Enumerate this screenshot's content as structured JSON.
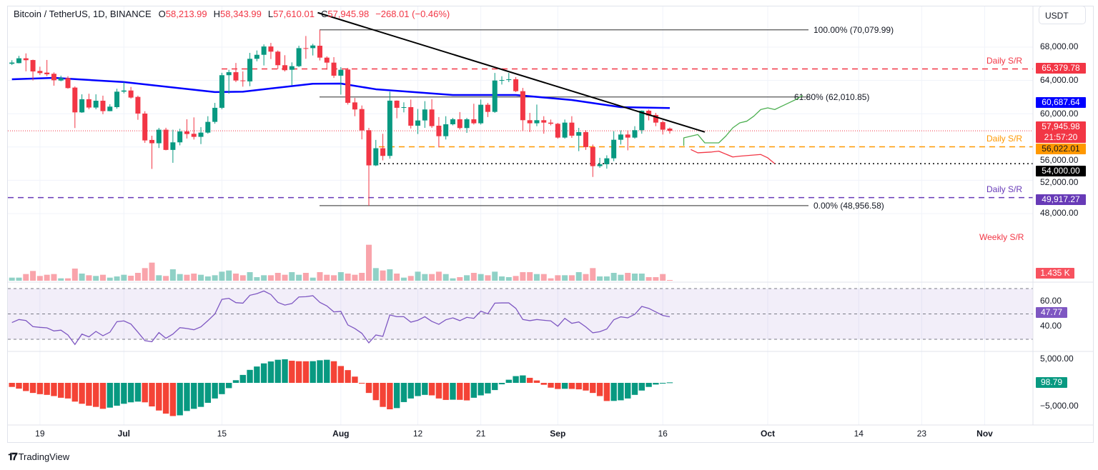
{
  "header": {
    "symbol": "Bitcoin / TetherUS, 1D, BINANCE",
    "o_label": "O",
    "o_value": "58,213.99",
    "h_label": "H",
    "h_value": "58,343.99",
    "l_label": "L",
    "l_value": "57,610.01",
    "c_label": "C",
    "c_value": "57,945.98",
    "change": "−268.01 (−0.46%)"
  },
  "currency": "USDT",
  "branding": {
    "logo_text": "TradingView",
    "logo_mark": "17"
  },
  "colors": {
    "up": "#089981",
    "down": "#f23645",
    "ma": "#0000ff",
    "rsi": "#7e57c2",
    "daily_sr_red": "#f23645",
    "daily_sr_orange": "#ff9800",
    "daily_sr_purple": "#673ab7",
    "support_black": "#000000",
    "forecast_bull": "#4caf50",
    "forecast_bear": "#f23645"
  },
  "price_axis": {
    "ticks": [
      "68,000.00",
      "64,000.00",
      "60,000.00",
      "56,000.00",
      "52,000.00",
      "48,000.00"
    ],
    "tick_values": [
      68000,
      64000,
      60000,
      56000,
      52000,
      48000
    ]
  },
  "price_tags": [
    {
      "text": "65,379.78",
      "value": 65379.78,
      "color": "#f23645"
    },
    {
      "text": "60,687.64",
      "value": 60687.64,
      "color": "#0000ff"
    },
    {
      "text": "57,945.98",
      "sub": "21:57:20",
      "value": 57945.98,
      "color": "#f23645"
    },
    {
      "text": "56,022.01",
      "value": 56022.01,
      "color": "#ff9800",
      "text_color": "#131722"
    },
    {
      "text": "54,000.00",
      "value": 54000,
      "color": "#000000"
    },
    {
      "text": "49,917.27",
      "value": 49917.27,
      "color": "#673ab7"
    }
  ],
  "sr_labels": [
    {
      "text": "Daily S/R",
      "value": 65379.78,
      "color": "#f23645"
    },
    {
      "text": "Daily S/R",
      "value": 56022.01,
      "color": "#ff9800"
    },
    {
      "text": "Daily S/R",
      "value": 49917.27,
      "color": "#673ab7"
    },
    {
      "text": "Weekly S/R",
      "color": "#f23645"
    }
  ],
  "fib_levels": [
    {
      "label": "100.00% (70,079.99)",
      "value": 70079.99
    },
    {
      "label": "61.80% (62,010.85)",
      "value": 62010.85
    },
    {
      "label": "0.00% (48,956.58)",
      "value": 48956.58
    }
  ],
  "volume_tag": {
    "text": "1.435 K",
    "color": "#f7525f"
  },
  "rsi_axis": {
    "ticks": [
      "60.00",
      "40.00"
    ],
    "tick_values": [
      60,
      40
    ],
    "band": [
      30,
      70
    ],
    "tag": "47.77",
    "tag_color": "#7e57c2"
  },
  "ao_axis": {
    "ticks": [
      "5,000.00",
      "−5,000.00"
    ],
    "tick_values": [
      5000,
      -5000
    ],
    "tag": "98.79",
    "tag_color": "#089981"
  },
  "time_axis": [
    {
      "label": "19",
      "x": "Jun 19",
      "month": false
    },
    {
      "label": "Jul",
      "x": "Jul 1",
      "month": true
    },
    {
      "label": "15",
      "x": "Jul 15",
      "month": false
    },
    {
      "label": "Aug",
      "x": "Aug 1",
      "month": true
    },
    {
      "label": "12",
      "x": "Aug 12",
      "month": false
    },
    {
      "label": "21",
      "x": "Aug 21",
      "month": false
    },
    {
      "label": "Sep",
      "x": "Sep 1",
      "month": true
    },
    {
      "label": "16",
      "x": "Sep 16",
      "month": false
    },
    {
      "label": "Oct",
      "x": "Oct 1",
      "month": true
    },
    {
      "label": "14",
      "x": "Oct 14",
      "month": false
    },
    {
      "label": "23",
      "x": "Oct 23",
      "month": false
    },
    {
      "label": "Nov",
      "x": "Nov 1",
      "month": true
    }
  ],
  "chart_data": {
    "type": "candlestick",
    "candles": [
      [
        "Jun 15",
        66000,
        66430,
        65850,
        66150
      ],
      [
        "Jun 16",
        66080,
        66950,
        66050,
        66660
      ],
      [
        "Jun 17",
        66660,
        67250,
        65100,
        66430
      ],
      [
        "Jun 18",
        66450,
        66500,
        64000,
        65080
      ],
      [
        "Jun 19",
        65140,
        65650,
        64650,
        64880
      ],
      [
        "Jun 20",
        64940,
        66460,
        64510,
        64740
      ],
      [
        "Jun 21",
        64800,
        64970,
        63370,
        64020
      ],
      [
        "Jun 22",
        63990,
        64570,
        63900,
        64280
      ],
      [
        "Jun 23",
        64280,
        64510,
        63000,
        63080
      ],
      [
        "Jun 24",
        63140,
        63280,
        58280,
        60160
      ],
      [
        "Jun 25",
        60160,
        62330,
        60100,
        61740
      ],
      [
        "Jun 26",
        61740,
        62400,
        60530,
        60740
      ],
      [
        "Jun 27",
        60740,
        62330,
        60530,
        61560
      ],
      [
        "Jun 28",
        61560,
        62170,
        59940,
        60310
      ],
      [
        "Jun 29",
        60310,
        61140,
        60300,
        60850
      ],
      [
        "Jun 30",
        60790,
        63000,
        60600,
        62650
      ],
      [
        "Jul 1",
        62650,
        63790,
        62450,
        62790
      ],
      [
        "Jul 2",
        62790,
        63220,
        61820,
        61940
      ],
      [
        "Jul 3",
        62020,
        62170,
        59270,
        60020
      ],
      [
        "Jul 4",
        60020,
        60300,
        56500,
        56790
      ],
      [
        "Jul 5",
        56850,
        57360,
        53360,
        56450
      ],
      [
        "Jul 6",
        56450,
        58300,
        55880,
        58080
      ],
      [
        "Jul 7",
        58080,
        58310,
        55600,
        55650
      ],
      [
        "Jul 8",
        55650,
        58080,
        54100,
        56560
      ],
      [
        "Jul 9",
        56560,
        58190,
        56200,
        57870
      ],
      [
        "Jul 10",
        57870,
        59330,
        57020,
        57560
      ],
      [
        "Jul 11",
        57590,
        59560,
        56900,
        57220
      ],
      [
        "Jul 12",
        57220,
        58390,
        56350,
        57730
      ],
      [
        "Jul 13",
        57730,
        59700,
        57600,
        59020
      ],
      [
        "Jul 14",
        59020,
        61300,
        58800,
        60710
      ],
      [
        "Jul 15",
        60710,
        64920,
        60540,
        64630
      ],
      [
        "Jul 16",
        64630,
        65280,
        62400,
        64990
      ],
      [
        "Jul 17",
        64990,
        66100,
        63800,
        63990
      ],
      [
        "Jul 18",
        64000,
        65080,
        63250,
        63930
      ],
      [
        "Jul 19",
        63880,
        67310,
        63310,
        66600
      ],
      [
        "Jul 20",
        66600,
        67600,
        66300,
        67080
      ],
      [
        "Jul 21",
        67080,
        68330,
        65800,
        68080
      ],
      [
        "Jul 22",
        68080,
        68510,
        66570,
        67460
      ],
      [
        "Jul 23",
        67460,
        67600,
        65370,
        65830
      ],
      [
        "Jul 24",
        65830,
        67030,
        65080,
        65230
      ],
      [
        "Jul 25",
        65280,
        66170,
        63420,
        65710
      ],
      [
        "Jul 26",
        65710,
        68170,
        65600,
        67880
      ],
      [
        "Jul 27",
        67880,
        69340,
        66600,
        67820
      ],
      [
        "Jul 28",
        67880,
        68400,
        67000,
        68200
      ],
      [
        "Jul 29",
        68170,
        70080,
        66400,
        66740
      ],
      [
        "Jul 30",
        66740,
        66900,
        65300,
        66140
      ],
      [
        "Jul 31",
        66140,
        66800,
        64300,
        64570
      ],
      [
        "Aug 1",
        64570,
        65600,
        62300,
        65280
      ],
      [
        "Aug 2",
        65310,
        65500,
        61100,
        61310
      ],
      [
        "Aug 3",
        61360,
        61900,
        59700,
        60510
      ],
      [
        "Aug 4",
        60560,
        60990,
        56920,
        57990
      ],
      [
        "Aug 5",
        58020,
        58300,
        48960,
        53790
      ],
      [
        "Aug 6",
        53790,
        56850,
        53700,
        55850
      ],
      [
        "Aug 7",
        55850,
        57590,
        54400,
        54930
      ],
      [
        "Aug 8",
        54930,
        62650,
        54600,
        61570
      ],
      [
        "Aug 9",
        61570,
        61600,
        59450,
        60710
      ],
      [
        "Aug 10",
        60710,
        61370,
        60160,
        60790
      ],
      [
        "Aug 11",
        60790,
        61700,
        58220,
        58560
      ],
      [
        "Aug 12",
        58560,
        60570,
        57560,
        59190
      ],
      [
        "Aug 13",
        59190,
        61510,
        58300,
        60510
      ],
      [
        "Aug 14",
        60510,
        61740,
        58300,
        58510
      ],
      [
        "Aug 15",
        58560,
        59600,
        55960,
        57300
      ],
      [
        "Aug 16",
        57300,
        59700,
        56900,
        58730
      ],
      [
        "Aug 17",
        58730,
        59500,
        58600,
        59330
      ],
      [
        "Aug 18",
        59330,
        60200,
        58100,
        58280
      ],
      [
        "Aug 19",
        58280,
        59500,
        57700,
        59330
      ],
      [
        "Aug 20",
        59330,
        61200,
        58700,
        58850
      ],
      [
        "Aug 21",
        58850,
        61700,
        58700,
        61080
      ],
      [
        "Aug 22",
        61080,
        61300,
        59600,
        60220
      ],
      [
        "Aug 23",
        60220,
        64900,
        60100,
        63990
      ],
      [
        "Aug 24",
        63990,
        64500,
        63500,
        64050
      ],
      [
        "Aug 25",
        64050,
        64900,
        63800,
        64140
      ],
      [
        "Aug 26",
        64140,
        64400,
        62600,
        62710
      ],
      [
        "Aug 27",
        62710,
        63100,
        57900,
        59220
      ],
      [
        "Aug 28",
        59220,
        60100,
        57800,
        58850
      ],
      [
        "Aug 29",
        58850,
        61100,
        58500,
        59220
      ],
      [
        "Aug 30",
        59220,
        59700,
        57600,
        58930
      ],
      [
        "Aug 31",
        58930,
        59300,
        58600,
        58790
      ],
      [
        "Sep 1",
        58790,
        58900,
        57000,
        57130
      ],
      [
        "Sep 2",
        57130,
        59300,
        57000,
        58930
      ],
      [
        "Sep 3",
        58930,
        59700,
        57100,
        57360
      ],
      [
        "Sep 4",
        57360,
        58300,
        55500,
        57790
      ],
      [
        "Sep 5",
        57790,
        58000,
        55650,
        55990
      ],
      [
        "Sep 6",
        55990,
        56300,
        52400,
        53700
      ],
      [
        "Sep 7",
        53700,
        54700,
        53500,
        53930
      ],
      [
        "Sep 8",
        53930,
        55000,
        53400,
        54640
      ],
      [
        "Sep 9",
        54640,
        57900,
        54300,
        56870
      ],
      [
        "Sep 10",
        56870,
        58000,
        56300,
        57500
      ],
      [
        "Sep 11",
        57500,
        58000,
        55600,
        57130
      ],
      [
        "Sep 12",
        57130,
        58500,
        57000,
        58020
      ],
      [
        "Sep 13",
        58020,
        60400,
        57600,
        60360
      ],
      [
        "Sep 14",
        60360,
        60500,
        59200,
        59790
      ],
      [
        "Sep 15",
        59850,
        60100,
        58500,
        58930
      ],
      [
        "Sep 16",
        58990,
        59200,
        57500,
        58080
      ],
      [
        "Sep 17",
        58213.99,
        58343.99,
        57610.01,
        57945.98
      ]
    ],
    "volume_k": [
      11.7,
      11.7,
      25.2,
      36.9,
      18,
      22.5,
      25.2,
      9,
      9,
      45.9,
      27,
      20.7,
      18,
      22.5,
      11.7,
      16.2,
      22.5,
      18.9,
      29.7,
      47.7,
      68.4,
      20.7,
      18,
      43.2,
      25.2,
      22.5,
      27,
      22.5,
      16.2,
      20.7,
      34.2,
      38.7,
      27,
      20.7,
      32.4,
      13.5,
      20.7,
      20.7,
      29.7,
      22.5,
      32.4,
      22.5,
      29.7,
      11.7,
      32.4,
      22.5,
      20.7,
      32.4,
      27,
      22.5,
      29.7,
      135.9,
      47.7,
      38.7,
      43.2,
      27,
      11.7,
      18,
      34.2,
      25.2,
      25.2,
      34.2,
      25.2,
      9,
      13.5,
      20.7,
      29.7,
      25.2,
      20.7,
      34.2,
      16.2,
      13.5,
      18,
      32.4,
      32.4,
      25.2,
      25.2,
      9,
      20.7,
      20.7,
      20.7,
      32.4,
      25.2,
      47.7,
      16.2,
      16.2,
      29.7,
      22.5,
      29.7,
      27,
      27,
      13.5,
      13.5,
      25.2,
      1.435
    ],
    "ma100": [
      [
        "Jun 15",
        64140
      ],
      [
        "Jun 21",
        64310
      ],
      [
        "Jul 1",
        63800
      ],
      [
        "Jul 14",
        62600
      ],
      [
        "Jul 18",
        62650
      ],
      [
        "Jul 28",
        63600
      ],
      [
        "Aug 1",
        63620
      ],
      [
        "Aug 6",
        62940
      ],
      [
        "Aug 17",
        62250
      ],
      [
        "Aug 26",
        62250
      ],
      [
        "Sep 3",
        61650
      ],
      [
        "Sep 10",
        60790
      ],
      [
        "Sep 17",
        60687.64
      ]
    ],
    "rsi": [
      43.2,
      45.6,
      44.8,
      40,
      39.4,
      39,
      36.6,
      37.2,
      33.4,
      25.9,
      34.1,
      31.9,
      36.2,
      32.8,
      35.6,
      43.9,
      44.5,
      42,
      35.6,
      28.9,
      28.1,
      35.3,
      30.8,
      34.1,
      39.2,
      38.5,
      37.5,
      39.8,
      44.7,
      50,
      61.5,
      62.3,
      58.9,
      58.5,
      64.7,
      66,
      68.1,
      65.3,
      59.1,
      57,
      58.2,
      63.4,
      63.6,
      64.4,
      59.1,
      56.3,
      51.6,
      52,
      41.3,
      38.5,
      34.7,
      27.2,
      33.4,
      32.3,
      49.2,
      47.8,
      47.8,
      43.5,
      45,
      47.8,
      44.1,
      41.8,
      45.4,
      46.9,
      44.7,
      47.3,
      46.5,
      52.2,
      50.1,
      58.5,
      58.7,
      58.7,
      54.4,
      45.6,
      44.7,
      45.6,
      45,
      44.5,
      40.3,
      46.5,
      42.6,
      43.7,
      39.8,
      35.1,
      36,
      38.1,
      45.4,
      47.7,
      46.9,
      49.7,
      55.9,
      54.4,
      51.6,
      48.8,
      47.77
    ],
    "ao": [
      -867,
      -1224,
      -1734,
      -2142,
      -2397,
      -2550,
      -2805,
      -3162,
      -3315,
      -3978,
      -4437,
      -4845,
      -5100,
      -5508,
      -5253,
      -4845,
      -4437,
      -4131,
      -3978,
      -4131,
      -5000,
      -5865,
      -6528,
      -7038,
      -6885,
      -5967,
      -5508,
      -5100,
      -4233,
      -3315,
      -2397,
      -1122,
      561,
      1683,
      2754,
      3468,
      4131,
      4539,
      4896,
      4998,
      4692,
      4590,
      4580,
      4600,
      4794,
      4896,
      4590,
      3570,
      2703,
      1326,
      -30,
      -2142,
      -3672,
      -5100,
      -5610,
      -5355,
      -4080,
      -3315,
      -2805,
      -2550,
      -2652,
      -3315,
      -3620,
      -3570,
      -3600,
      -3723,
      -3162,
      -2652,
      -2244,
      -1530,
      -306,
      663,
      1428,
      1581,
      1071,
      510,
      -408,
      -1020,
      -1300,
      -1260,
      -1290,
      -1377,
      -1632,
      -2142,
      -2805,
      -3850,
      -3830,
      -3700,
      -3315,
      -2550,
      -1632,
      -867,
      -357,
      -102,
      98.79
    ],
    "trendline": [
      [
        "Jul 29",
        70080
      ],
      [
        "Sep 22",
        57800
      ]
    ],
    "forecast_bull": [
      [
        "Sep 19",
        56150
      ],
      [
        "Sep 19",
        57100
      ],
      [
        "Sep 21",
        57500
      ],
      [
        "Sep 22",
        56500
      ],
      [
        "Sep 24",
        56500
      ],
      [
        "Sep 25",
        57300
      ],
      [
        "Sep 26",
        58300
      ],
      [
        "Sep 27",
        58900
      ],
      [
        "Sep 28",
        59100
      ],
      [
        "Sep 29",
        59700
      ],
      [
        "Sep 30",
        60500
      ],
      [
        "Oct 1",
        60700
      ],
      [
        "Oct 2",
        60500
      ],
      [
        "Oct 3",
        60900
      ],
      [
        "Oct 4",
        61300
      ],
      [
        "Oct 5",
        61700
      ],
      [
        "Oct 6",
        62200
      ]
    ],
    "forecast_bear": [
      [
        "Sep 20",
        55700
      ],
      [
        "Sep 21",
        55300
      ],
      [
        "Sep 23",
        55400
      ],
      [
        "Sep 24",
        55500
      ],
      [
        "Sep 26",
        54800
      ],
      [
        "Sep 27",
        54900
      ],
      [
        "Sep 30",
        55100
      ],
      [
        "Oct 1",
        54700
      ],
      [
        "Oct 2",
        54000
      ]
    ]
  }
}
